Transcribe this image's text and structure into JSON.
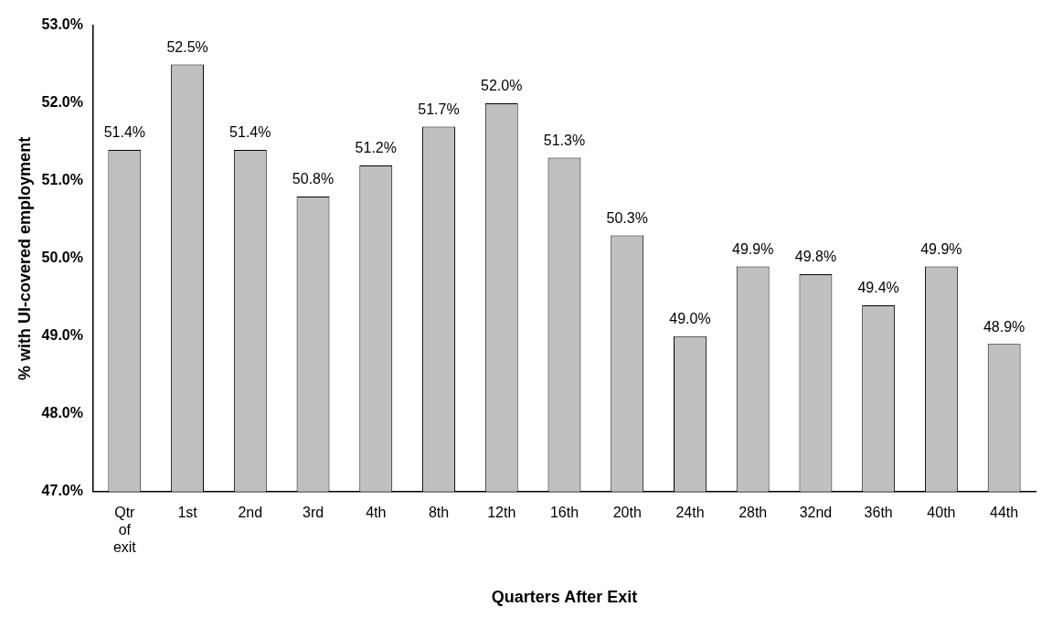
{
  "chart_data": {
    "type": "bar",
    "xlabel": "Quarters After Exit",
    "ylabel": "% with UI-covered employment",
    "categories": [
      "Qtr of exit",
      "1st",
      "2nd",
      "3rd",
      "4th",
      "8th",
      "12th",
      "16th",
      "20th",
      "24th",
      "28th",
      "32nd",
      "36th",
      "40th",
      "44th"
    ],
    "values": [
      51.4,
      52.5,
      51.4,
      50.8,
      51.2,
      51.7,
      52.0,
      51.3,
      50.3,
      49.0,
      49.9,
      49.8,
      49.4,
      49.9,
      48.9
    ],
    "value_labels": [
      "51.4%",
      "52.5%",
      "51.4%",
      "50.8%",
      "51.2%",
      "51.7%",
      "52.0%",
      "51.3%",
      "50.3%",
      "49.0%",
      "49.9%",
      "49.8%",
      "49.4%",
      "49.9%",
      "48.9%"
    ],
    "color": "#c0c0c0",
    "ylim": [
      47,
      53
    ],
    "yticks": [
      {
        "value": 47,
        "label": "47.0%"
      },
      {
        "value": 48,
        "label": "48.0%"
      },
      {
        "value": 49,
        "label": "49.0%"
      },
      {
        "value": 50,
        "label": "50.0%"
      },
      {
        "value": 51,
        "label": "51.0%"
      },
      {
        "value": 52,
        "label": "52.0%"
      },
      {
        "value": 53,
        "label": "53.0%"
      }
    ],
    "grid": false,
    "legend": false
  }
}
